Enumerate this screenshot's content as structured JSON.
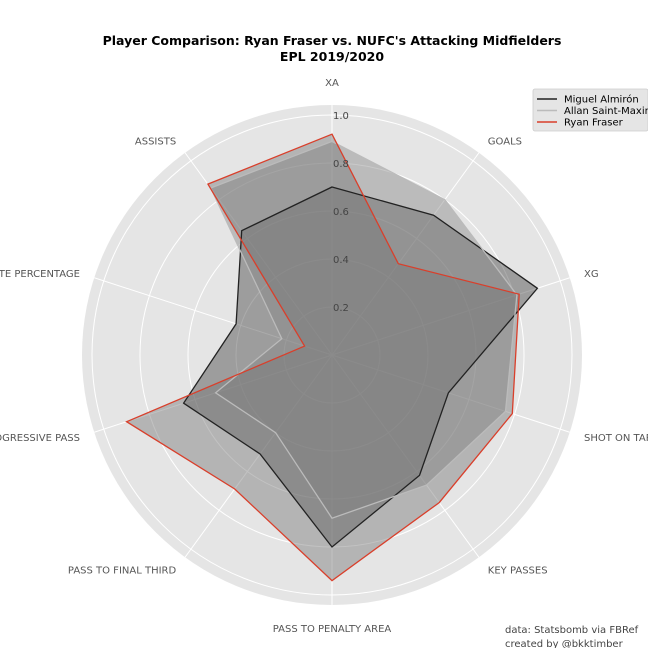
{
  "chart_data": {
    "type": "radar",
    "title": "Player Comparison: Ryan Fraser vs. NUFC's Attacking Midfielders",
    "subtitle": "EPL 2019/2020",
    "axes": [
      "XA",
      "GOALS",
      "XG",
      "SHOT ON TARGET PERCENTAGE",
      "KEY PASSES",
      "PASS TO PENALTY AREA",
      "PASS TO FINAL THIRD",
      "PROGRESSIVE PASS",
      "PASS COMPLETE PERCENTAGE",
      "ASSISTS"
    ],
    "rlim": [
      0,
      1.0
    ],
    "rticks": [
      "0.2",
      "0.4",
      "0.6",
      "0.8",
      "1.0"
    ],
    "rtick_values": [
      0.2,
      0.4,
      0.6,
      0.8,
      1.0
    ],
    "grid": true,
    "legend_position": "top-right",
    "series": [
      {
        "name": "Miguel Almirón",
        "color": "#222222",
        "fill": "#444444",
        "values": [
          0.7,
          0.72,
          0.9,
          0.51,
          0.62,
          0.8,
          0.51,
          0.65,
          0.42,
          0.64
        ]
      },
      {
        "name": "Allan Saint-Maximin",
        "color": "#bbbbbb",
        "fill": "#888888",
        "values": [
          0.89,
          0.8,
          0.81,
          0.76,
          0.67,
          0.68,
          0.4,
          0.51,
          0.22,
          0.86
        ]
      },
      {
        "name": "Ryan Fraser",
        "color": "#d93f2b",
        "fill": "#777777",
        "values": [
          0.92,
          0.47,
          0.82,
          0.79,
          0.76,
          0.94,
          0.69,
          0.9,
          0.12,
          0.88
        ]
      }
    ]
  },
  "footer": {
    "source": "data: Statsbomb via FBRef",
    "credit": "created by @bkktimber"
  }
}
